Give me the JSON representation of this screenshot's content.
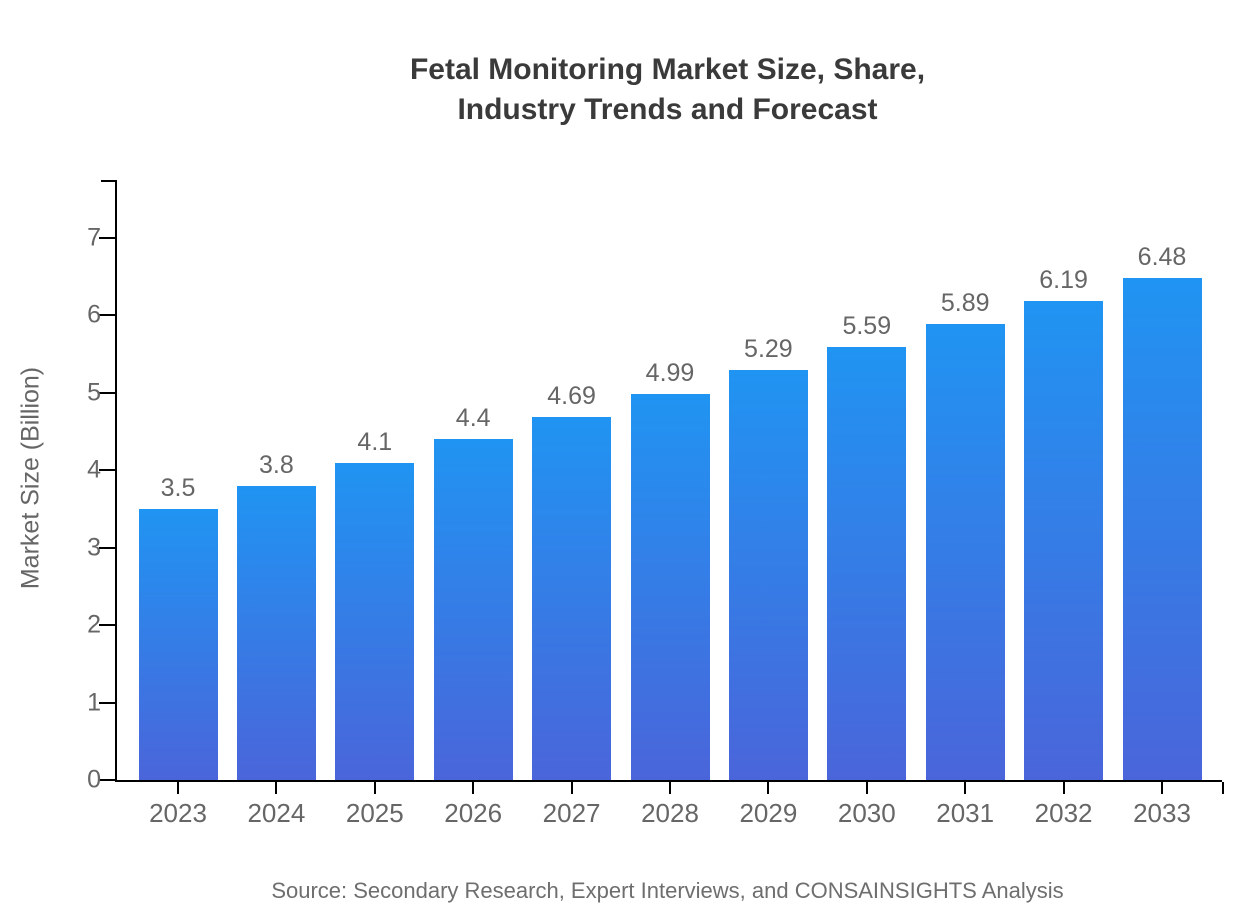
{
  "chart_data": {
    "type": "bar",
    "title": "Fetal Monitoring Market Size, Share, Industry Trends and Forecast",
    "title_lines": [
      "Fetal Monitoring Market Size, Share,",
      "Industry Trends and Forecast"
    ],
    "categories": [
      "2023",
      "2024",
      "2025",
      "2026",
      "2027",
      "2028",
      "2029",
      "2030",
      "2031",
      "2032",
      "2033"
    ],
    "values": [
      3.5,
      3.8,
      4.1,
      4.4,
      4.69,
      4.99,
      5.29,
      5.59,
      5.89,
      6.19,
      6.48
    ],
    "value_labels": [
      "3.5",
      "3.8",
      "4.1",
      "4.4",
      "4.69",
      "4.99",
      "5.29",
      "5.59",
      "5.89",
      "6.19",
      "6.48"
    ],
    "xlabel": "",
    "ylabel": "Market Size (Billion)",
    "ylim": [
      0,
      7.75
    ],
    "yticks": [
      0,
      1,
      2,
      3,
      4,
      5,
      6,
      7
    ],
    "grid": false,
    "legend": false,
    "value_labels_shown": true,
    "source": "Source: Secondary Research, Expert Interviews, and CONSAINSIGHTS Analysis",
    "colors": {
      "bar_gradient_top": "#2094f2",
      "bar_gradient_bottom": "#4a65da",
      "axis": "#000000",
      "tick_label": "#666666",
      "value_label": "#666666",
      "title": "#3a3a3a",
      "source_text": "#6e6e6e",
      "background": "#ffffff"
    }
  }
}
